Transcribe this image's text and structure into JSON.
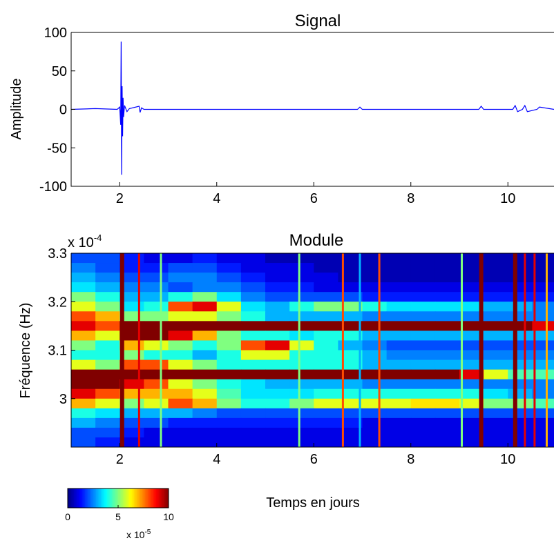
{
  "chart_data": [
    {
      "type": "line",
      "title": "Signal",
      "ylabel": "Amplitude",
      "color": "#0000ff",
      "x": [
        1,
        1.5,
        1.95,
        2.0,
        2.02,
        2.03,
        2.04,
        2.05,
        2.06,
        2.07,
        2.08,
        2.1,
        2.15,
        2.2,
        2.4,
        2.42,
        2.45,
        2.5,
        3,
        4,
        5,
        6,
        6.9,
        6.95,
        7,
        8,
        9.4,
        9.45,
        9.5,
        10.1,
        10.15,
        10.2,
        10.3,
        10.35,
        10.4,
        10.6,
        10.65,
        10.95
      ],
      "values": [
        0,
        1,
        0,
        3,
        -20,
        88,
        -85,
        30,
        -35,
        15,
        -10,
        5,
        -3,
        1,
        4,
        -4,
        2,
        0,
        0,
        0,
        0,
        0,
        0,
        3,
        0,
        0,
        0,
        4,
        0,
        0,
        5,
        -3,
        0,
        5,
        -3,
        0,
        3,
        0
      ],
      "xlim": [
        1,
        10.95
      ],
      "ylim": [
        -100,
        100
      ],
      "xticks": [
        2,
        4,
        6,
        8,
        10
      ],
      "yticks": [
        -100,
        -50,
        0,
        50,
        100
      ]
    },
    {
      "type": "heatmap",
      "title": "Module",
      "ylabel": "Fréquence (Hz)",
      "xlabel": "Temps en jours",
      "y_multiplier": {
        "base": "x 10",
        "exponent": "-4"
      },
      "x": [
        1.25,
        1.75,
        2.25,
        2.75,
        3.25,
        3.75,
        4.25,
        4.75,
        5.25,
        5.75,
        6.25,
        6.75,
        7.25,
        7.75,
        8.25,
        8.75,
        9.25,
        9.75,
        10.25,
        10.75
      ],
      "y": [
        3.29,
        3.27,
        3.25,
        3.23,
        3.21,
        3.19,
        3.17,
        3.15,
        3.13,
        3.11,
        3.09,
        3.07,
        3.05,
        3.03,
        3.01,
        2.99,
        2.97,
        2.95,
        2.93,
        2.91
      ],
      "z": [
        [
          2,
          2,
          1.5,
          1,
          1,
          1.5,
          1,
          1,
          0.5,
          0.5,
          0.5,
          0.5,
          0.5,
          0.5,
          0.5,
          0.5,
          0.5,
          0.5,
          0.5,
          0.5
        ],
        [
          2.5,
          2,
          1.5,
          1.5,
          2,
          2,
          1.5,
          1,
          1,
          1,
          0.5,
          0.5,
          0.5,
          0.5,
          0.5,
          0.5,
          0.5,
          0.5,
          0.5,
          0.5
        ],
        [
          3,
          2.5,
          2,
          2,
          2.5,
          2.5,
          2,
          1.5,
          1,
          1,
          1,
          0.5,
          0.5,
          0.5,
          0.5,
          0.5,
          0.5,
          0.5,
          0.5,
          0.5
        ],
        [
          3.5,
          3,
          2.5,
          2.5,
          2,
          2.5,
          2.5,
          2,
          1.5,
          1.5,
          1,
          1,
          1,
          1,
          1,
          1,
          1,
          1,
          1,
          1
        ],
        [
          5,
          4,
          3,
          3,
          4,
          5,
          3.5,
          2.5,
          2,
          2,
          2,
          2,
          1.5,
          1.5,
          1.5,
          1.5,
          1.5,
          1.5,
          1.5,
          1.5
        ],
        [
          6,
          5,
          3.5,
          4,
          8,
          9,
          6,
          3.5,
          3,
          4,
          5,
          5,
          4,
          3.5,
          3.5,
          3.5,
          3.5,
          3,
          3,
          2.5
        ],
        [
          8,
          7,
          5,
          5,
          6,
          6,
          5,
          4,
          3,
          3,
          3,
          3,
          2.5,
          2.5,
          2.5,
          2.5,
          2.5,
          2.5,
          2.5,
          2.5
        ],
        [
          9,
          8,
          10,
          10,
          10,
          10,
          10,
          10,
          10,
          10,
          10,
          10,
          10,
          10,
          10,
          10,
          10,
          10,
          10,
          9
        ],
        [
          7,
          6,
          10,
          10,
          9,
          7,
          5,
          4,
          4,
          3.5,
          4,
          4,
          3,
          3,
          3,
          3,
          3,
          3,
          3,
          3
        ],
        [
          5,
          4,
          7,
          6,
          5,
          4,
          5,
          8,
          9,
          6,
          4,
          3,
          2.5,
          2,
          2,
          2,
          2,
          2,
          2,
          2
        ],
        [
          4,
          4,
          5,
          4,
          4,
          3,
          4,
          6,
          6,
          4,
          4,
          4,
          3,
          2.5,
          2.5,
          2.5,
          2.5,
          2.5,
          2.5,
          2.5
        ],
        [
          6,
          5,
          8,
          8,
          6,
          5,
          4,
          4,
          4,
          4,
          4,
          4,
          3,
          3,
          3,
          3,
          3,
          3,
          3,
          3
        ],
        [
          10,
          10,
          10,
          10,
          10,
          10,
          10,
          10,
          10,
          10,
          10,
          10,
          10,
          10,
          10,
          10,
          9,
          6,
          4.5,
          4.5
        ],
        [
          10,
          10,
          9,
          8,
          6,
          5,
          4,
          3.5,
          3,
          3,
          3,
          3,
          2.5,
          2.5,
          2.5,
          2.5,
          2.5,
          2.5,
          2.5,
          2.5
        ],
        [
          9,
          8,
          7,
          7,
          7,
          6,
          4.5,
          3.5,
          3.5,
          3.5,
          4,
          4,
          4,
          4,
          4,
          4,
          4,
          3.5,
          3,
          2.5
        ],
        [
          7,
          6,
          5,
          6,
          8,
          7,
          5,
          4,
          4,
          5,
          6,
          6,
          6,
          6,
          6.5,
          6.5,
          6,
          5,
          5,
          4.5
        ],
        [
          4,
          3.5,
          3,
          3,
          3,
          2.5,
          2,
          2,
          2,
          2,
          2,
          2,
          2,
          2,
          2,
          2,
          2,
          2,
          2,
          2
        ],
        [
          3,
          2.5,
          2,
          2,
          1.5,
          1.5,
          1.5,
          1.5,
          1.5,
          1.5,
          1.5,
          1.5,
          1,
          1,
          1,
          1,
          1,
          1,
          1,
          1
        ],
        [
          2,
          2,
          1.5,
          1,
          1,
          1,
          1,
          1,
          1,
          1,
          1,
          1,
          1,
          1,
          1,
          1,
          1,
          1,
          1,
          1
        ],
        [
          2,
          1.5,
          1,
          1,
          1,
          1,
          1,
          1,
          1,
          1,
          1,
          1,
          1,
          1,
          1,
          1,
          1,
          1,
          1,
          1
        ]
      ],
      "streaks": {
        "x": [
          2.05,
          2.4,
          2.85,
          5.7,
          6.6,
          6.95,
          7.35,
          9.05,
          9.45,
          10.15,
          10.35,
          10.55,
          10.8
        ],
        "values": [
          10,
          9,
          5,
          5,
          8,
          3,
          8,
          5,
          10,
          10,
          9,
          9,
          7
        ]
      },
      "xlim": [
        1,
        10.95
      ],
      "ylim": [
        2.9,
        3.3
      ],
      "xticks": [
        2,
        4,
        6,
        8,
        10
      ],
      "yticks": [
        3,
        3.1,
        3.2,
        3.3
      ],
      "colormap": "jet",
      "clim": [
        0,
        10
      ],
      "cticks": [
        0,
        5,
        10
      ],
      "c_multiplier": {
        "base": "x 10",
        "exponent": "-5"
      }
    }
  ]
}
